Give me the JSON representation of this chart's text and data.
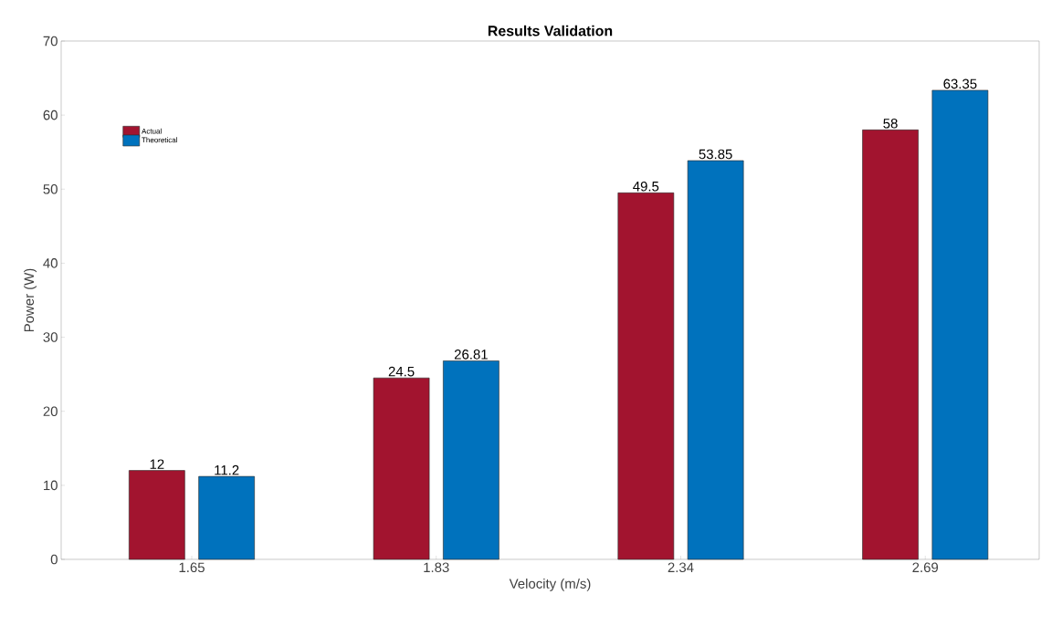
{
  "chart_data": {
    "type": "bar",
    "title": "Results Validation",
    "xlabel": "Velocity (m/s)",
    "ylabel": "Power (W)",
    "categories": [
      "1.65",
      "1.83",
      "2.34",
      "2.69"
    ],
    "series": [
      {
        "name": "Actual",
        "color": "#a2142f",
        "values": [
          12,
          24.5,
          49.5,
          58
        ]
      },
      {
        "name": "Theoretical",
        "color": "#0072bd",
        "values": [
          11.2,
          26.81,
          53.85,
          63.35
        ]
      }
    ],
    "ylim": [
      0,
      70
    ],
    "yticks": [
      0,
      10,
      20,
      30,
      40,
      50,
      60,
      70
    ],
    "data_labels": true,
    "legend": "top left",
    "grid": false
  }
}
